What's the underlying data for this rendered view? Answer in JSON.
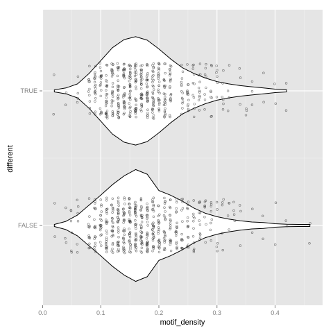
{
  "chart_data": {
    "type": "violin",
    "xlabel": "motif_density",
    "ylabel": "different",
    "xlim": [
      0,
      0.48
    ],
    "x_ticks": [
      "0.0",
      "0.1",
      "0.2",
      "0.3",
      "0.4"
    ],
    "x_tick_values": [
      0.0,
      0.1,
      0.2,
      0.3,
      0.4
    ],
    "categories": [
      "TRUE",
      "FALSE"
    ],
    "grid": true,
    "colors": {
      "panel": "#e5e5e5",
      "grid_major": "#ffffff",
      "grid_minor": "#f2f2f2",
      "violin_fill": "#ffffff",
      "violin_stroke": "#000000",
      "points": "#333333"
    },
    "violins": [
      {
        "group": "TRUE",
        "profile": [
          [
            0.02,
            0.01
          ],
          [
            0.04,
            0.05
          ],
          [
            0.06,
            0.12
          ],
          [
            0.08,
            0.3
          ],
          [
            0.1,
            0.52
          ],
          [
            0.12,
            0.74
          ],
          [
            0.14,
            0.88
          ],
          [
            0.16,
            0.93
          ],
          [
            0.18,
            0.87
          ],
          [
            0.2,
            0.72
          ],
          [
            0.22,
            0.55
          ],
          [
            0.24,
            0.4
          ],
          [
            0.26,
            0.3
          ],
          [
            0.28,
            0.22
          ],
          [
            0.3,
            0.16
          ],
          [
            0.32,
            0.12
          ],
          [
            0.34,
            0.09
          ],
          [
            0.36,
            0.07
          ],
          [
            0.38,
            0.05
          ],
          [
            0.4,
            0.03
          ],
          [
            0.42,
            0.01
          ]
        ],
        "point_values": [
          0.02,
          0.04,
          0.06,
          0.08,
          0.09,
          0.1,
          0.11,
          0.12,
          0.13,
          0.14,
          0.15,
          0.16,
          0.17,
          0.18,
          0.19,
          0.2,
          0.21,
          0.22,
          0.24,
          0.25,
          0.26,
          0.27,
          0.28,
          0.29,
          0.3,
          0.31,
          0.32,
          0.34,
          0.35,
          0.36,
          0.38,
          0.4,
          0.42
        ]
      },
      {
        "group": "FALSE",
        "profile": [
          [
            0.02,
            0.01
          ],
          [
            0.04,
            0.07
          ],
          [
            0.06,
            0.18
          ],
          [
            0.08,
            0.35
          ],
          [
            0.1,
            0.52
          ],
          [
            0.12,
            0.7
          ],
          [
            0.14,
            0.85
          ],
          [
            0.16,
            0.96
          ],
          [
            0.18,
            0.88
          ],
          [
            0.2,
            0.6
          ],
          [
            0.22,
            0.52
          ],
          [
            0.24,
            0.42
          ],
          [
            0.26,
            0.3
          ],
          [
            0.28,
            0.21
          ],
          [
            0.3,
            0.15
          ],
          [
            0.32,
            0.11
          ],
          [
            0.34,
            0.08
          ],
          [
            0.36,
            0.06
          ],
          [
            0.38,
            0.05
          ],
          [
            0.4,
            0.03
          ],
          [
            0.42,
            0.02
          ],
          [
            0.44,
            0.01
          ],
          [
            0.46,
            0.005
          ]
        ],
        "point_values": [
          0.02,
          0.04,
          0.05,
          0.06,
          0.08,
          0.09,
          0.1,
          0.11,
          0.12,
          0.13,
          0.14,
          0.15,
          0.16,
          0.17,
          0.18,
          0.19,
          0.2,
          0.21,
          0.22,
          0.23,
          0.24,
          0.25,
          0.26,
          0.27,
          0.28,
          0.29,
          0.3,
          0.31,
          0.32,
          0.33,
          0.34,
          0.36,
          0.38,
          0.4,
          0.42,
          0.46
        ]
      }
    ]
  }
}
